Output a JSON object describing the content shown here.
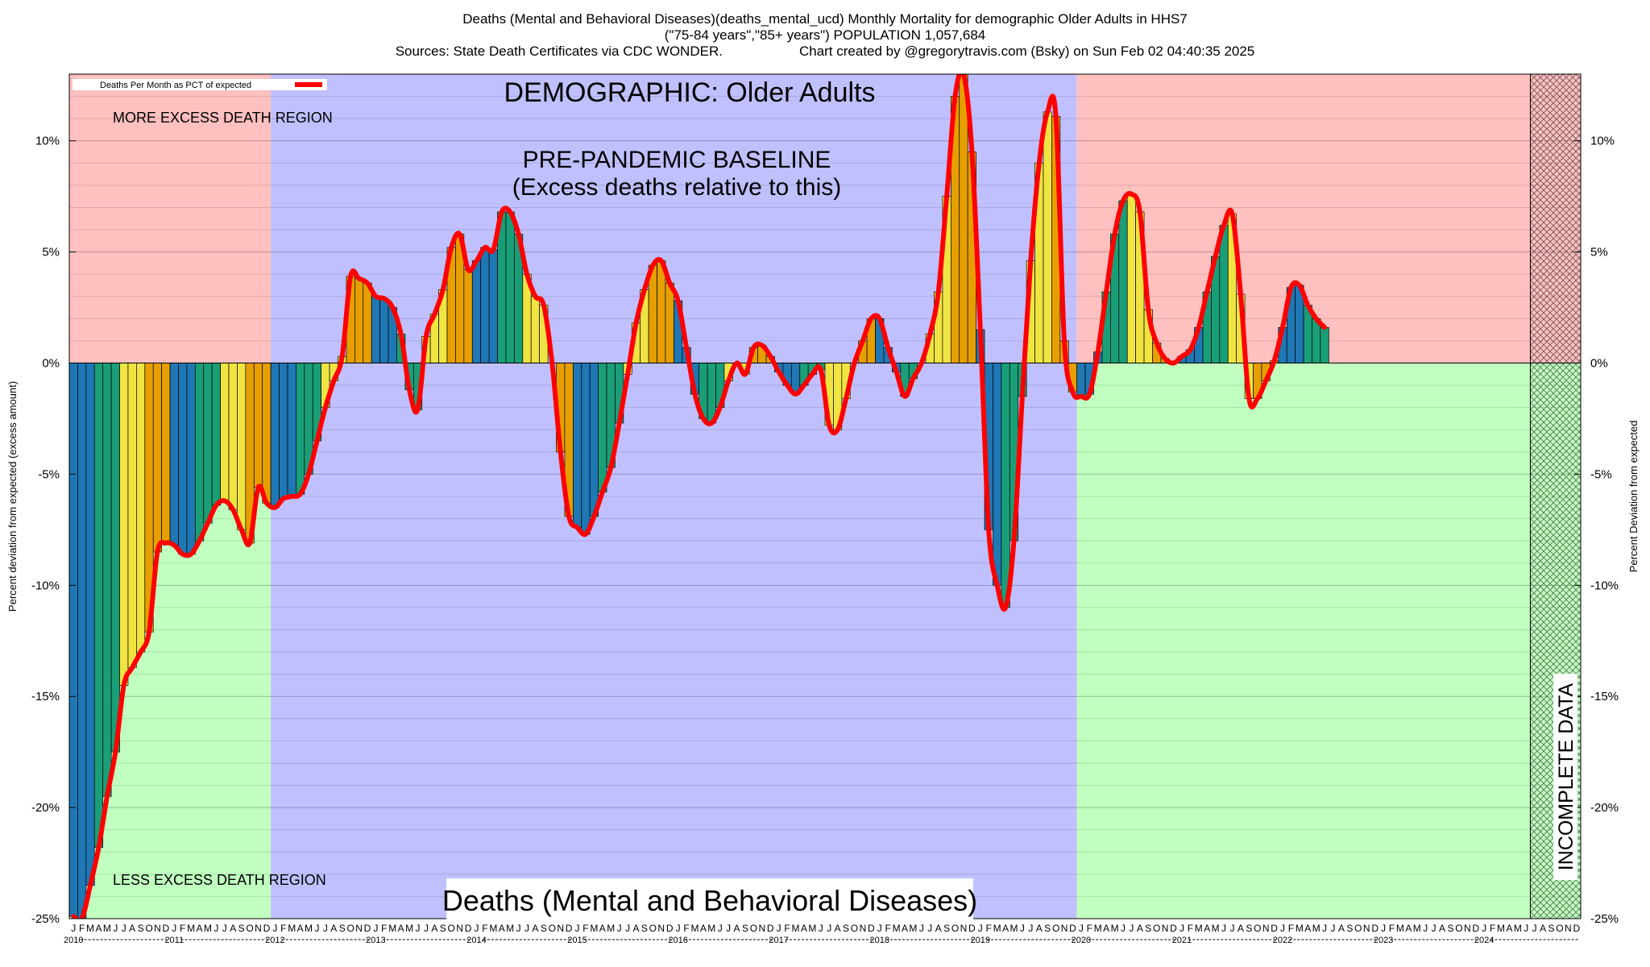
{
  "header": {
    "title": "Deaths (Mental and Behavioral Diseases)(deaths_mental_ucd) Monthly Mortality for demographic Older Adults in HHS7",
    "subtitle": "(\"75-84 years\",\"85+ years\") POPULATION 1,057,684",
    "sources": "Sources: State Death Certificates via CDC WONDER.",
    "credit": "Chart created by @gregorytravis.com (Bsky) on Sun Feb 02 04:40:35 2025"
  },
  "annotations": {
    "demographic": "DEMOGRAPHIC: Older Adults",
    "baseline_line1": "PRE-PANDEMIC BASELINE",
    "baseline_line2": "(Excess deaths relative to this)",
    "more_region": "MORE EXCESS DEATH REGION",
    "less_region": "LESS EXCESS DEATH REGION",
    "bottom_label": "Deaths (Mental and Behavioral Diseases)",
    "incomplete": "INCOMPLETE DATA"
  },
  "colors": {
    "more_region": "#ffc0c0",
    "less_region": "#c0ffc0",
    "baseline_region": "#c0c0ff",
    "line": "#ff0000",
    "bar_colors": [
      "#1f77b4",
      "#1a9e77",
      "#f0e442",
      "#e69f00"
    ]
  },
  "chart_data": {
    "type": "bar",
    "ylabel_left": "Percent deviation from expected (excess amount)",
    "ylabel_right": "Percent Deviation from expected",
    "legend": "Deaths Per Month as PCT of expected",
    "legend_position": "top-left",
    "ylim": [
      -25,
      13
    ],
    "yticks": [
      -25,
      -20,
      -15,
      -10,
      -5,
      0,
      5,
      10
    ],
    "ytick_labels": [
      "-25%",
      "-20%",
      "-15%",
      "-10%",
      "-5%",
      "0%",
      "5%",
      "10%"
    ],
    "month_letters": [
      "J",
      "F",
      "M",
      "A",
      "M",
      "J",
      "J",
      "A",
      "S",
      "O",
      "N",
      "D"
    ],
    "years": [
      "2010",
      "2011",
      "2012",
      "2013",
      "2014",
      "2015",
      "2016",
      "2017",
      "2018",
      "2019",
      "2020",
      "2021",
      "2022",
      "2023",
      "2024"
    ],
    "start": "2010-01",
    "baseline_period": [
      "2012-01",
      "2019-12"
    ],
    "incomplete_from": "2024-07",
    "values": [
      -24.9,
      -25.0,
      -23.5,
      -21.8,
      -19.5,
      -17.5,
      -14.5,
      -13.7,
      -13.0,
      -12.1,
      -8.5,
      -8.1,
      -8.2,
      -8.6,
      -8.6,
      -8.0,
      -7.2,
      -6.4,
      -6.2,
      -6.6,
      -7.5,
      -8.1,
      -5.6,
      -6.3,
      -6.5,
      -6.1,
      -6.0,
      -5.9,
      -5.0,
      -3.5,
      -2.0,
      -0.8,
      0.3,
      3.9,
      3.8,
      3.6,
      3.0,
      2.9,
      2.5,
      1.3,
      -1.2,
      -2.1,
      1.2,
      2.2,
      3.3,
      5.2,
      5.8,
      4.2,
      4.6,
      5.2,
      5.1,
      6.8,
      6.8,
      5.8,
      4.0,
      3.0,
      2.6,
      0.0,
      -4.0,
      -6.9,
      -7.4,
      -7.7,
      -6.9,
      -5.8,
      -4.7,
      -2.7,
      -0.5,
      1.8,
      3.3,
      4.4,
      4.6,
      3.6,
      2.8,
      0.7,
      -1.4,
      -2.5,
      -2.7,
      -2.0,
      -0.8,
      0.0,
      -0.5,
      0.7,
      0.8,
      0.3,
      -0.4,
      -1.0,
      -1.4,
      -1.0,
      -0.5,
      -0.3,
      -2.8,
      -3.0,
      -1.6,
      0.0,
      1.0,
      2.0,
      2.0,
      0.7,
      -0.4,
      -1.5,
      -0.7,
      0.0,
      1.3,
      3.2,
      7.5,
      12.0,
      13.0,
      9.5,
      1.5,
      -7.5,
      -10.0,
      -11.0,
      -8.0,
      -1.5,
      4.6,
      9.0,
      11.3,
      11.1,
      1.0,
      -1.3,
      -1.5,
      -1.4,
      0.5,
      3.2,
      5.8,
      7.3,
      7.6,
      6.8,
      2.4,
      0.9,
      0.2,
      0.0,
      0.3,
      0.6,
      1.6,
      3.2,
      4.8,
      6.2,
      6.7,
      3.1,
      -1.6,
      -1.6,
      -0.8,
      0.1,
      1.6,
      3.4,
      3.5,
      2.6,
      2.0,
      1.6
    ]
  }
}
